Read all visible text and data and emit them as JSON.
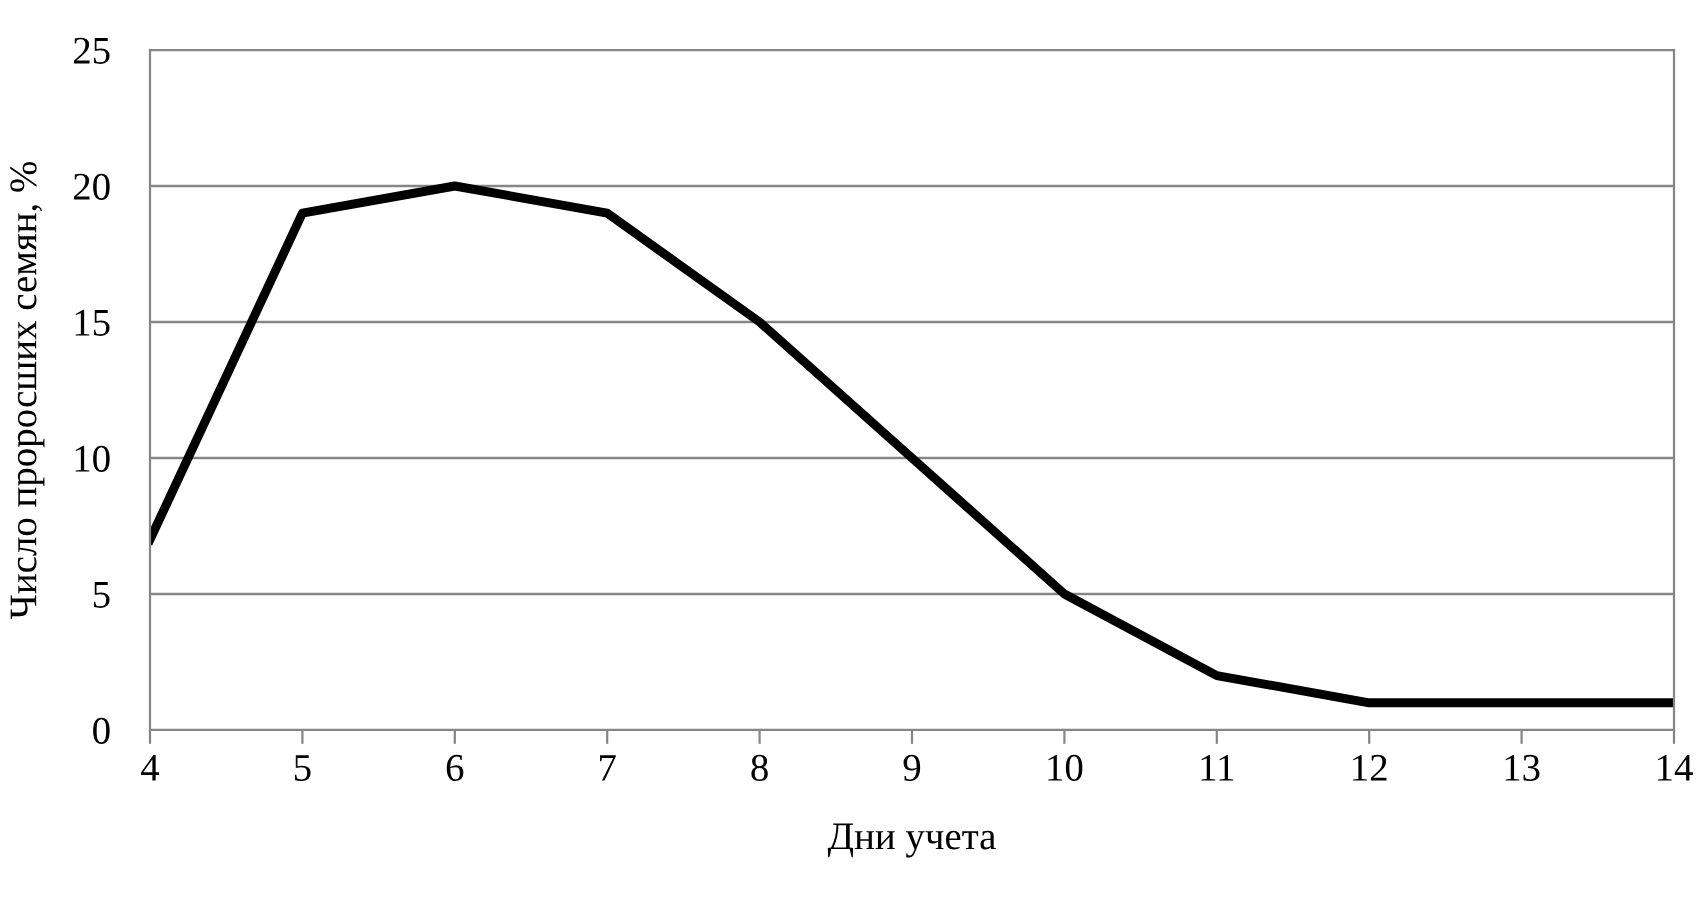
{
  "chart_data": {
    "type": "line",
    "xlabel": "Дни учета",
    "ylabel": "Число проросших семян, %",
    "x": [
      4,
      5,
      6,
      7,
      8,
      9,
      10,
      11,
      12,
      13,
      14
    ],
    "series": [
      {
        "color": "#000000",
        "values": [
          7,
          19,
          20,
          19,
          15,
          10,
          5,
          2,
          1,
          1,
          1
        ]
      }
    ],
    "xlim": [
      4,
      14
    ],
    "xticks": [
      4,
      5,
      6,
      7,
      8,
      9,
      10,
      11,
      12,
      13,
      14
    ],
    "ylim": [
      0,
      25
    ],
    "yticks": [
      0,
      5,
      10,
      15,
      20,
      25
    ],
    "grid": "y",
    "marker": "none",
    "line_style": "solid"
  }
}
